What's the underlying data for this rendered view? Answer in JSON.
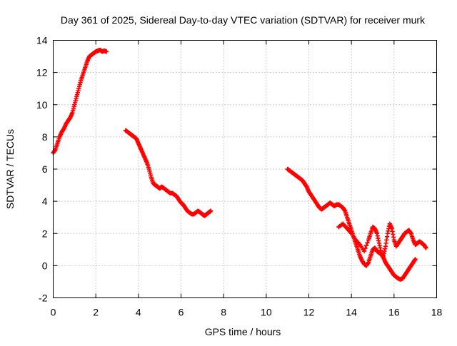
{
  "chart_data": {
    "type": "scatter",
    "title": "Day 361 of 2025, Sidereal Day-to-day VTEC variation (SDTVAR) for receiver murk",
    "xlabel": "GPS time / hours",
    "ylabel": "SDTVAR / TECUs",
    "xlim": [
      0,
      18
    ],
    "ylim": [
      -2,
      14
    ],
    "xticks": [
      0,
      2,
      4,
      6,
      8,
      10,
      12,
      14,
      16,
      18
    ],
    "yticks": [
      -2,
      0,
      2,
      4,
      6,
      8,
      10,
      12,
      14
    ],
    "grid": true,
    "legend": "none",
    "marker": "plus",
    "color": "#ff0000",
    "series": [
      {
        "name": "segment-1",
        "x": [
          0.0,
          0.1,
          0.2,
          0.3,
          0.4,
          0.5,
          0.6,
          0.7,
          0.8,
          0.9,
          1.0,
          1.1,
          1.2,
          1.3,
          1.4,
          1.5,
          1.6,
          1.7,
          1.8,
          1.9,
          2.0,
          2.1,
          2.2,
          2.3,
          2.4,
          2.5
        ],
        "y": [
          7.0,
          7.2,
          7.6,
          8.0,
          8.3,
          8.5,
          8.8,
          9.0,
          9.2,
          9.5,
          10.0,
          10.5,
          11.0,
          11.5,
          11.9,
          12.3,
          12.7,
          13.0,
          13.1,
          13.2,
          13.3,
          13.35,
          13.4,
          13.3,
          13.35,
          13.3
        ]
      },
      {
        "name": "segment-2",
        "x": [
          3.4,
          3.5,
          3.6,
          3.7,
          3.8,
          3.9,
          4.0,
          4.1,
          4.2,
          4.3,
          4.4,
          4.5,
          4.6,
          4.7,
          4.8,
          4.9,
          5.0,
          5.1,
          5.2,
          5.3,
          5.4,
          5.5,
          5.6,
          5.7,
          5.8,
          5.9,
          6.0,
          6.1,
          6.2,
          6.3,
          6.4,
          6.5,
          6.6,
          6.7,
          6.8,
          6.9,
          7.0,
          7.1,
          7.2,
          7.3,
          7.4
        ],
        "y": [
          8.4,
          8.3,
          8.2,
          8.1,
          8.0,
          7.9,
          7.6,
          7.3,
          7.0,
          6.7,
          6.4,
          6.0,
          5.5,
          5.1,
          5.0,
          4.9,
          4.8,
          4.9,
          4.8,
          4.7,
          4.6,
          4.5,
          4.5,
          4.4,
          4.3,
          4.1,
          3.9,
          3.8,
          3.6,
          3.4,
          3.3,
          3.2,
          3.2,
          3.3,
          3.4,
          3.3,
          3.2,
          3.1,
          3.2,
          3.3,
          3.4
        ]
      },
      {
        "name": "segment-3-main",
        "x": [
          11.0,
          11.1,
          11.2,
          11.3,
          11.4,
          11.5,
          11.6,
          11.7,
          11.8,
          11.9,
          12.0,
          12.1,
          12.2,
          12.3,
          12.4,
          12.5,
          12.6,
          12.7,
          12.8,
          12.9,
          13.0,
          13.1,
          13.2,
          13.3,
          13.4,
          13.5,
          13.6,
          13.7,
          13.8,
          13.9,
          14.0,
          14.1,
          14.2,
          14.3,
          14.4,
          14.5,
          14.6,
          14.7,
          14.8,
          14.9,
          15.0,
          15.1,
          15.2,
          15.3,
          15.4,
          15.5,
          15.6,
          15.7,
          15.8,
          15.9,
          16.0,
          16.1,
          16.2,
          16.3,
          16.4,
          16.5,
          16.6,
          16.7,
          16.8,
          16.9,
          17.0
        ],
        "y": [
          6.0,
          5.9,
          5.8,
          5.7,
          5.6,
          5.5,
          5.4,
          5.3,
          5.1,
          4.9,
          4.6,
          4.4,
          4.2,
          4.0,
          3.8,
          3.6,
          3.5,
          3.6,
          3.7,
          3.8,
          3.9,
          3.8,
          3.7,
          3.8,
          3.8,
          3.7,
          3.6,
          3.4,
          3.0,
          2.6,
          2.2,
          1.8,
          1.4,
          1.0,
          0.6,
          0.3,
          0.1,
          0.0,
          0.2,
          0.6,
          1.0,
          1.1,
          0.9,
          0.8,
          0.7,
          0.5,
          0.2,
          0.0,
          -0.2,
          -0.4,
          -0.6,
          -0.7,
          -0.8,
          -0.85,
          -0.8,
          -0.6,
          -0.4,
          -0.2,
          0.0,
          0.2,
          0.4
        ]
      },
      {
        "name": "segment-3-loop",
        "x": [
          13.4,
          13.6,
          13.8,
          14.0,
          14.2,
          14.4,
          14.6,
          14.8,
          14.9,
          15.0,
          15.1,
          15.2,
          15.3,
          15.4,
          15.5,
          15.6,
          15.7,
          15.8,
          15.9,
          16.0,
          16.1,
          16.2,
          16.3,
          16.4,
          16.5,
          16.6,
          16.7,
          16.8,
          16.9,
          17.0,
          17.1,
          17.2,
          17.3,
          17.4,
          17.5
        ],
        "y": [
          2.4,
          2.6,
          2.3,
          2.0,
          1.6,
          1.3,
          0.9,
          1.6,
          2.0,
          2.4,
          2.3,
          2.0,
          1.4,
          0.8,
          0.6,
          1.2,
          2.0,
          2.6,
          2.3,
          1.6,
          1.2,
          1.4,
          1.6,
          1.8,
          2.0,
          2.1,
          2.2,
          2.0,
          1.6,
          1.3,
          1.4,
          1.5,
          1.4,
          1.3,
          1.1
        ]
      }
    ]
  }
}
